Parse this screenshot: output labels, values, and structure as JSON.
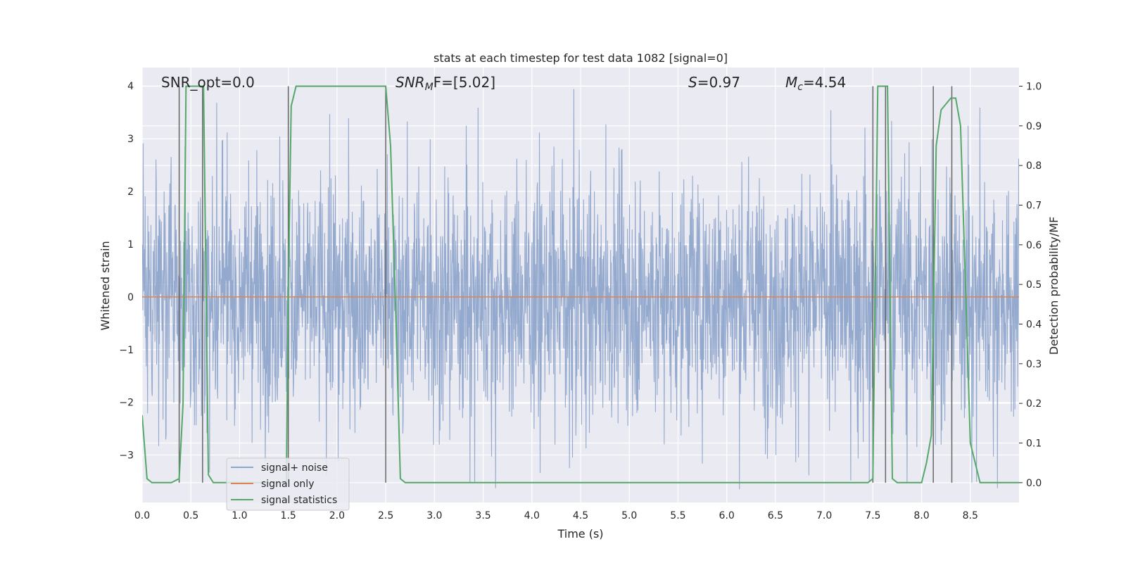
{
  "chart_data": {
    "type": "line",
    "title": "stats at each timestep for test data 1082 [signal=0]",
    "xlabel": "Time (s)",
    "ylabel_left": "Whitened strain",
    "ylabel_right": "Detection probability/MF",
    "xlim": [
      0.0,
      9.0
    ],
    "ylim_left": [
      -3.9,
      4.35
    ],
    "ylim_right": [
      -0.05,
      1.047
    ],
    "x_ticks": [
      "0.0",
      "0.5",
      "1.0",
      "1.5",
      "2.0",
      "2.5",
      "3.0",
      "3.5",
      "4.0",
      "4.5",
      "5.0",
      "5.5",
      "6.0",
      "6.5",
      "7.0",
      "7.5",
      "8.0",
      "8.5"
    ],
    "x_tick_values": [
      0.0,
      0.5,
      1.0,
      1.5,
      2.0,
      2.5,
      3.0,
      3.5,
      4.0,
      4.5,
      5.0,
      5.5,
      6.0,
      6.5,
      7.0,
      7.5,
      8.0,
      8.5
    ],
    "y_left_ticks": [
      "4",
      "3",
      "2",
      "1",
      "0",
      "−1",
      "−2",
      "−3"
    ],
    "y_left_tick_values": [
      4,
      3,
      2,
      1,
      0,
      -1,
      -2,
      -3
    ],
    "y_right_ticks": [
      "1.0",
      "0.9",
      "0.8",
      "0.7",
      "0.6",
      "0.5",
      "0.4",
      "0.3",
      "0.2",
      "0.1",
      "0.0"
    ],
    "y_right_tick_values": [
      1.0,
      0.9,
      0.8,
      0.7,
      0.6,
      0.5,
      0.4,
      0.3,
      0.2,
      0.1,
      0.0
    ],
    "grid": true,
    "legend_position": "lower-left",
    "annotations": {
      "snr_opt": "SNR_opt=0.0",
      "snr_mf_label": "SNR",
      "snr_mf_sub": "M",
      "snr_mf_rest": "F=[5.02]",
      "s_label": "S",
      "s_value": "=0.97",
      "mc_label": "M",
      "mc_sub": "c",
      "mc_value": "=4.54"
    },
    "colors": {
      "noise": "#8fa5cb",
      "signal": "#dd8452",
      "stats": "#55a868",
      "vlines": "#666666",
      "background": "#eaeaf2",
      "grid": "#ffffff"
    },
    "series": [
      {
        "name": "signal+ noise",
        "axis": "left",
        "description_values": "dense whitened noise, roughly uniform amplitude ~ +/-1.6 with spikes up to ~4 and down to ~-3.6",
        "amplitude_envelope": 1.6
      },
      {
        "name": "signal only",
        "axis": "left",
        "x": [
          0.0,
          9.0
        ],
        "y": [
          0.0,
          0.0
        ]
      },
      {
        "name": "signal statistics",
        "axis": "right",
        "x": [
          0.0,
          0.05,
          0.1,
          0.2,
          0.3,
          0.38,
          0.42,
          0.45,
          0.5,
          0.55,
          0.6,
          0.63,
          0.68,
          0.73,
          0.8,
          1.0,
          1.3,
          1.48,
          1.5,
          1.53,
          1.58,
          1.65,
          2.0,
          2.45,
          2.5,
          2.55,
          2.6,
          2.65,
          2.7,
          3.0,
          4.0,
          5.0,
          6.0,
          7.0,
          7.45,
          7.5,
          7.55,
          7.6,
          7.65,
          7.7,
          7.75,
          8.0,
          8.05,
          8.1,
          8.15,
          8.2,
          8.3,
          8.35,
          8.4,
          8.45,
          8.5,
          8.6,
          9.0
        ],
        "y": [
          0.17,
          0.01,
          0.0,
          0.0,
          0.0,
          0.01,
          0.2,
          1.0,
          1.0,
          1.0,
          1.0,
          1.0,
          0.02,
          0.0,
          0.0,
          0.0,
          0.0,
          0.0,
          0.5,
          0.95,
          1.0,
          1.0,
          1.0,
          1.0,
          1.0,
          0.85,
          0.45,
          0.01,
          0.0,
          0.0,
          0.0,
          0.0,
          0.0,
          0.0,
          0.0,
          0.01,
          1.0,
          1.0,
          1.0,
          0.01,
          0.0,
          0.0,
          0.05,
          0.12,
          0.85,
          0.94,
          0.97,
          0.97,
          0.9,
          0.5,
          0.1,
          0.0,
          0.0
        ]
      }
    ],
    "vertical_lines": [
      0.38,
      0.62,
      1.5,
      2.5,
      7.5,
      7.63,
      8.12,
      8.31
    ]
  }
}
